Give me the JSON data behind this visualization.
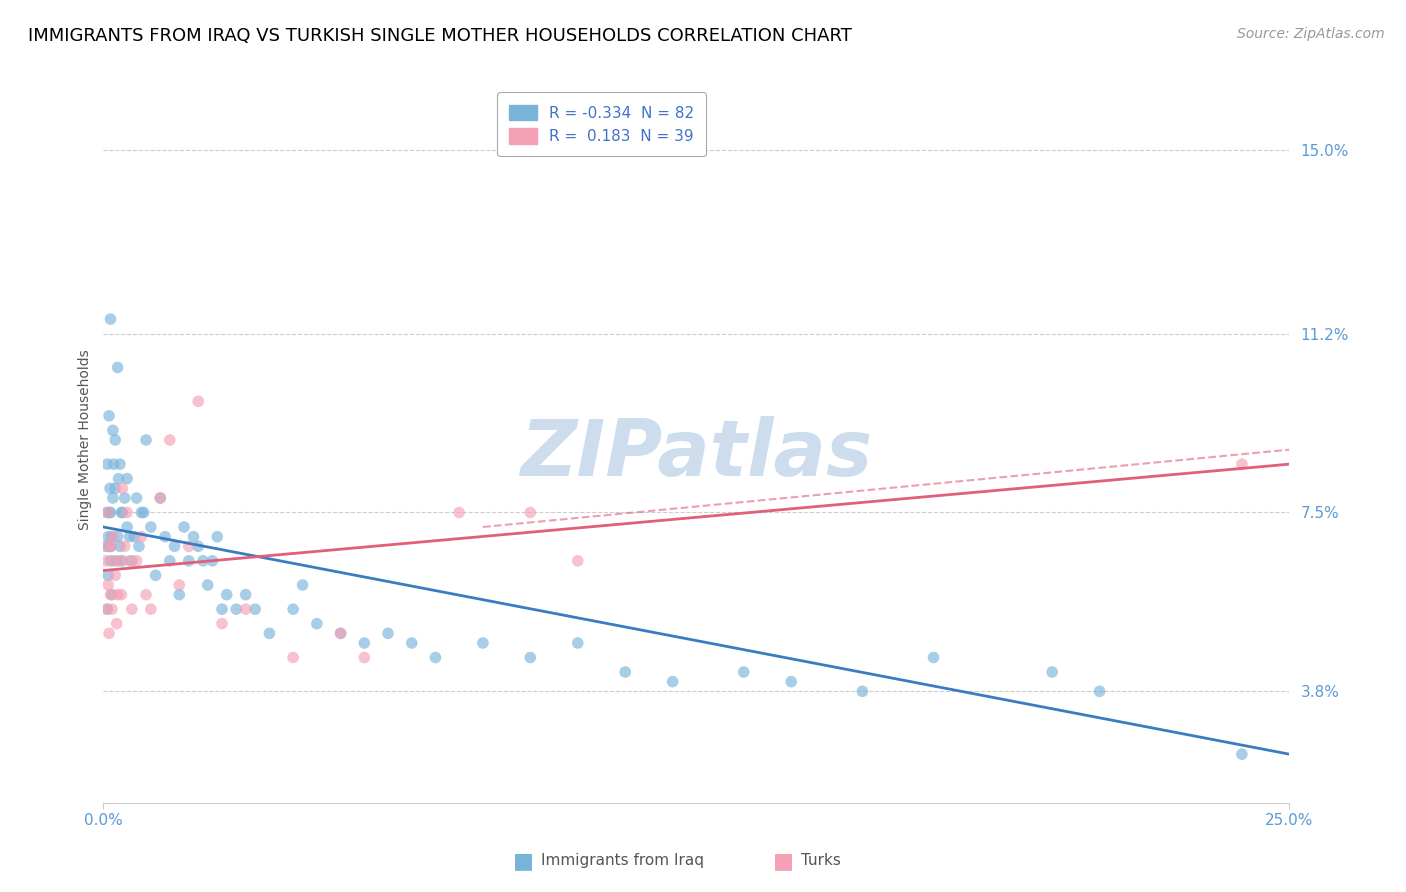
{
  "title": "IMMIGRANTS FROM IRAQ VS TURKISH SINGLE MOTHER HOUSEHOLDS CORRELATION CHART",
  "source": "Source: ZipAtlas.com",
  "ylabel": "Single Mother Households",
  "xlim": [
    0.0,
    25.0
  ],
  "ylim": [
    1.5,
    16.5
  ],
  "ytick_positions": [
    3.8,
    7.5,
    11.2,
    15.0
  ],
  "ytick_labels": [
    "3.8%",
    "7.5%",
    "11.2%",
    "15.0%"
  ],
  "blue_scatter_x": [
    0.05,
    0.07,
    0.08,
    0.08,
    0.1,
    0.1,
    0.12,
    0.12,
    0.13,
    0.14,
    0.15,
    0.15,
    0.15,
    0.16,
    0.18,
    0.18,
    0.2,
    0.2,
    0.22,
    0.25,
    0.25,
    0.28,
    0.3,
    0.3,
    0.32,
    0.35,
    0.35,
    0.38,
    0.4,
    0.4,
    0.45,
    0.5,
    0.5,
    0.55,
    0.6,
    0.65,
    0.7,
    0.75,
    0.8,
    0.85,
    0.9,
    1.0,
    1.1,
    1.2,
    1.3,
    1.4,
    1.5,
    1.6,
    1.7,
    1.8,
    1.9,
    2.0,
    2.1,
    2.2,
    2.3,
    2.4,
    2.5,
    2.6,
    2.8,
    3.0,
    3.2,
    3.5,
    4.0,
    4.2,
    4.5,
    5.0,
    5.5,
    6.0,
    6.5,
    7.0,
    8.0,
    9.0,
    10.0,
    11.0,
    12.0,
    13.5,
    14.5,
    16.0,
    17.5,
    20.0,
    21.0,
    24.0
  ],
  "blue_scatter_y": [
    6.8,
    7.5,
    5.5,
    8.5,
    7.0,
    6.2,
    6.8,
    9.5,
    7.5,
    8.0,
    7.5,
    6.5,
    11.5,
    6.8,
    7.0,
    5.8,
    9.2,
    7.8,
    8.5,
    8.0,
    9.0,
    6.5,
    7.0,
    10.5,
    8.2,
    6.8,
    8.5,
    7.5,
    7.5,
    6.5,
    7.8,
    7.2,
    8.2,
    7.0,
    6.5,
    7.0,
    7.8,
    6.8,
    7.5,
    7.5,
    9.0,
    7.2,
    6.2,
    7.8,
    7.0,
    6.5,
    6.8,
    5.8,
    7.2,
    6.5,
    7.0,
    6.8,
    6.5,
    6.0,
    6.5,
    7.0,
    5.5,
    5.8,
    5.5,
    5.8,
    5.5,
    5.0,
    5.5,
    6.0,
    5.2,
    5.0,
    4.8,
    5.0,
    4.8,
    4.5,
    4.8,
    4.5,
    4.8,
    4.2,
    4.0,
    4.2,
    4.0,
    3.8,
    4.5,
    4.2,
    3.8,
    2.5
  ],
  "pink_scatter_x": [
    0.05,
    0.08,
    0.1,
    0.1,
    0.12,
    0.12,
    0.15,
    0.15,
    0.18,
    0.2,
    0.22,
    0.25,
    0.28,
    0.3,
    0.35,
    0.38,
    0.4,
    0.45,
    0.5,
    0.55,
    0.6,
    0.7,
    0.8,
    0.9,
    1.0,
    1.2,
    1.4,
    1.6,
    1.8,
    2.0,
    2.5,
    3.0,
    4.0,
    5.0,
    5.5,
    7.5,
    9.0,
    10.0,
    24.0
  ],
  "pink_scatter_y": [
    6.5,
    5.5,
    7.5,
    6.0,
    6.8,
    5.0,
    6.8,
    5.8,
    5.5,
    7.0,
    6.5,
    6.2,
    5.2,
    5.8,
    6.5,
    5.8,
    8.0,
    6.8,
    7.5,
    6.5,
    5.5,
    6.5,
    7.0,
    5.8,
    5.5,
    7.8,
    9.0,
    6.0,
    6.8,
    9.8,
    5.2,
    5.5,
    4.5,
    5.0,
    4.5,
    7.5,
    7.5,
    6.5,
    8.5
  ],
  "blue_trend_x0": 0.0,
  "blue_trend_x1": 25.0,
  "blue_trend_y0": 7.2,
  "blue_trend_y1": 2.5,
  "pink_trend_x0": 0.0,
  "pink_trend_x1": 25.0,
  "pink_trend_y0": 6.3,
  "pink_trend_y1": 8.5,
  "blue_color": "#7ab3d9",
  "pink_color": "#f4a0b5",
  "blue_trend_color": "#3b7bbf",
  "pink_trend_color": "#e0607a",
  "watermark_text": "ZIPatlas",
  "watermark_color": "#c5d8ea",
  "legend_label1": "R = -0.334  N = 82",
  "legend_label2": "R =  0.183  N = 39",
  "legend_text_color": "#4472c4",
  "title_fontsize": 13,
  "axis_label_fontsize": 10,
  "tick_fontsize": 11,
  "source_fontsize": 10,
  "ytick_color": "#5b9bd5",
  "xtick_color": "#5b9bd5"
}
